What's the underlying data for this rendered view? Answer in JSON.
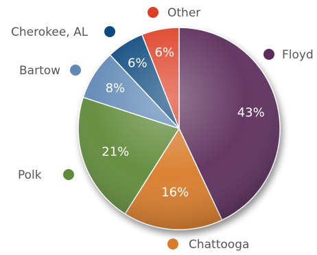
{
  "chart_data": {
    "type": "pie",
    "title": "",
    "slices": [
      {
        "label": "Floyd",
        "value": 43,
        "display": "43%",
        "color": "#5b2d5c"
      },
      {
        "label": "Chattooga",
        "value": 16,
        "display": "16%",
        "color": "#d97b2a"
      },
      {
        "label": "Polk",
        "value": 21,
        "display": "21%",
        "color": "#5f8a38"
      },
      {
        "label": "Bartow",
        "value": 8,
        "display": "8%",
        "color": "#6189b6"
      },
      {
        "label": "Cherokee, AL",
        "value": 6,
        "display": "6%",
        "color": "#0a4a7e"
      },
      {
        "label": "Other",
        "value": 6,
        "display": "6%",
        "color": "#de4027"
      }
    ],
    "start_angle_deg": 0,
    "direction": "clockwise"
  }
}
